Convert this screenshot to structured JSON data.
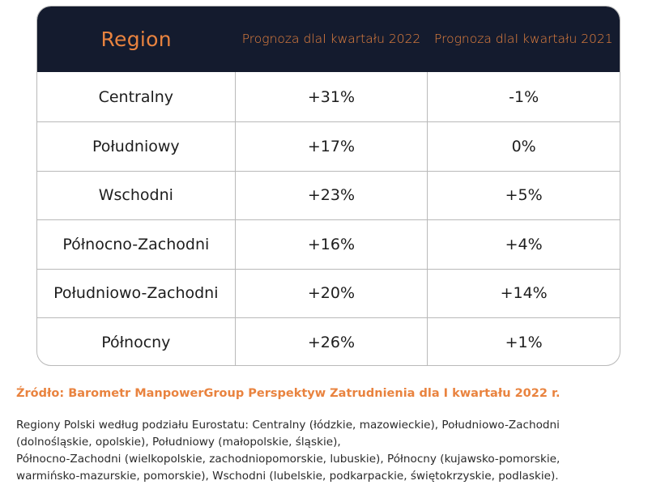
{
  "table": {
    "header": {
      "region": "Region",
      "col1": [
        "Prognoza dla",
        "I kwartału 2022"
      ],
      "col2": [
        "Prognoza dla",
        "I kwartału 2021"
      ]
    },
    "rows": [
      {
        "region": "Centralny",
        "q1_2022": "+31%",
        "q1_2021": "-1%"
      },
      {
        "region": "Południowy",
        "q1_2022": "+17%",
        "q1_2021": "0%"
      },
      {
        "region": "Wschodni",
        "q1_2022": "+23%",
        "q1_2021": "+5%"
      },
      {
        "region": "Północno-Zachodni",
        "q1_2022": "+16%",
        "q1_2021": "+4%"
      },
      {
        "region": "Południowo-Zachodni",
        "q1_2022": "+20%",
        "q1_2021": "+14%"
      },
      {
        "region": "Północny",
        "q1_2022": "+26%",
        "q1_2021": "+1%"
      }
    ]
  },
  "source": "Źródło: Barometr ManpowerGroup Perspektyw Zatrudnienia dla I kwartału 2022 r.",
  "note_lines": [
    "Regiony Polski według podziału Eurostatu: Centralny (łódzkie, mazowieckie), Południowo-Zachodni",
    "(dolnośląskie, opolskie), Południowy (małopolskie, śląskie),",
    "Północno-Zachodni (wielkopolskie, zachodniopomorskie, lubuskie), Północny (kujawsko-pomorskie,",
    "warmińsko-mazurskie, pomorskie), Wschodni (lubelskie, podkarpackie, świętokrzyskie, podlaskie)."
  ],
  "colors": {
    "header_bg": "#141b2e",
    "accent": "#e9833f",
    "border": "#b9b9b9"
  }
}
